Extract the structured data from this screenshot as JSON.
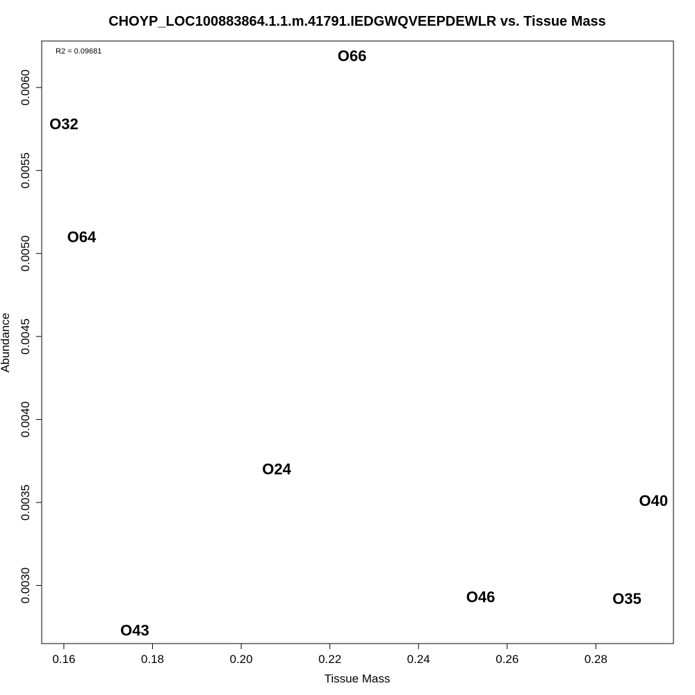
{
  "chart_data": {
    "type": "scatter",
    "title": "CHOYP_LOC100883864.1.1.m.41791.IEDGWQVEEPDEWLR vs. Tissue Mass",
    "xlabel": "Tissue Mass",
    "ylabel": "Abundance",
    "annotation": "R2 = 0.09681",
    "xlim": [
      0.155,
      0.2975
    ],
    "ylim": [
      0.00265,
      0.00628
    ],
    "xticks": [
      0.16,
      0.18,
      0.2,
      0.22,
      0.24,
      0.26,
      0.28
    ],
    "xtick_labels": [
      "0.16",
      "0.18",
      "0.20",
      "0.22",
      "0.24",
      "0.26",
      "0.28"
    ],
    "yticks": [
      0.003,
      0.0035,
      0.004,
      0.0045,
      0.005,
      0.0055,
      0.006
    ],
    "ytick_labels": [
      "0.0030",
      "0.0035",
      "0.0040",
      "0.0045",
      "0.0050",
      "0.0055",
      "0.0060"
    ],
    "grid": false,
    "points": [
      {
        "label": "O66",
        "x": 0.225,
        "y": 0.00619
      },
      {
        "label": "O32",
        "x": 0.16,
        "y": 0.00578
      },
      {
        "label": "O64",
        "x": 0.164,
        "y": 0.0051
      },
      {
        "label": "O24",
        "x": 0.208,
        "y": 0.0037
      },
      {
        "label": "O40",
        "x": 0.293,
        "y": 0.00351
      },
      {
        "label": "O46",
        "x": 0.254,
        "y": 0.00293
      },
      {
        "label": "O35",
        "x": 0.287,
        "y": 0.00292
      },
      {
        "label": "O43",
        "x": 0.176,
        "y": 0.00273
      }
    ]
  }
}
